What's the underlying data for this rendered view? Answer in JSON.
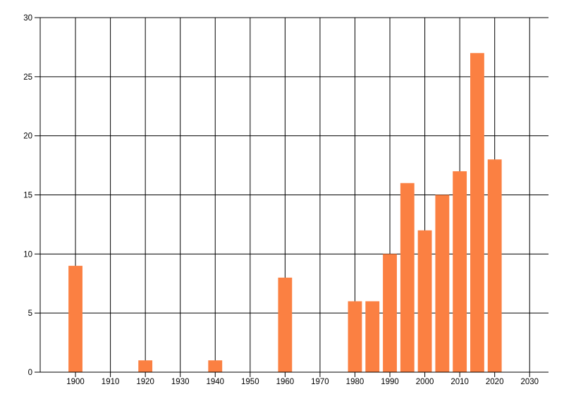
{
  "chart_data": {
    "type": "bar",
    "title": "",
    "xlabel": "",
    "ylabel": "",
    "x": [
      1900,
      1920,
      1940,
      1960,
      1980,
      1985,
      1990,
      1995,
      2000,
      2005,
      2010,
      2015,
      2020
    ],
    "values": [
      9,
      1,
      1,
      8,
      6,
      6,
      10,
      16,
      12,
      15,
      17,
      27,
      18
    ],
    "x_ticks": [
      1900,
      1910,
      1920,
      1930,
      1940,
      1950,
      1960,
      1970,
      1980,
      1990,
      2000,
      2010,
      2020,
      2030
    ],
    "x_tick_labels": [
      "1900",
      "1910",
      "1920",
      "1930",
      "1940",
      "1950",
      "1960",
      "1970",
      "1980",
      "1990",
      "2000",
      "2010",
      "2020",
      "2030"
    ],
    "y_ticks": [
      0,
      5,
      10,
      15,
      20,
      25,
      30
    ],
    "y_tick_labels": [
      "0",
      "5",
      "10",
      "15",
      "20",
      "25",
      "30"
    ],
    "xlim": [
      1889.9,
      2035.4
    ],
    "ylim": [
      0,
      30
    ],
    "bar_width_years": 4,
    "grid": true,
    "legend": "none",
    "bar_color": "#fb8042",
    "axis_color": "#000000",
    "grid_color": "#000000",
    "text_color": "#000000",
    "background_color": "#ffffff"
  }
}
